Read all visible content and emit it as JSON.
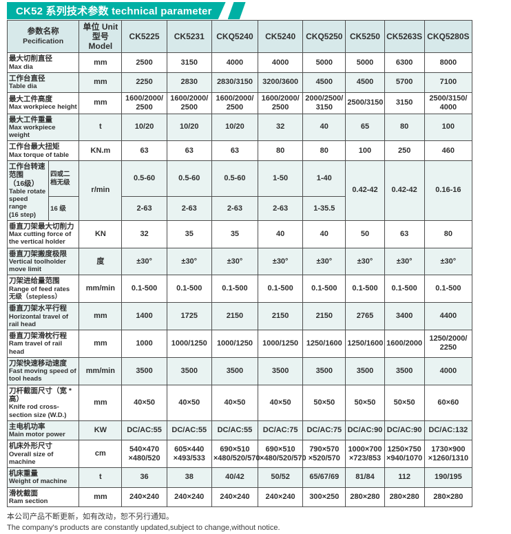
{
  "banner": {
    "title": "CK52 系列技术参数  technical parameter",
    "accent_color": "#00b0a4"
  },
  "table": {
    "header": {
      "param_zh": "参数名称",
      "param_en": "Pecification",
      "unit_line1": "单位 Unit",
      "unit_line2": "型号 Model"
    },
    "columns": [
      "CK5225",
      "CK5231",
      "CKQ5240",
      "CK5240",
      "CKQ5250",
      "CK5250",
      "CK5263S",
      "CKQ5280S"
    ],
    "rows": [
      {
        "zh": "最大切削直径",
        "en": "Max dia",
        "unit": "mm",
        "values": [
          "2500",
          "3150",
          "4000",
          "4000",
          "5000",
          "5000",
          "6300",
          "8000"
        ]
      },
      {
        "zh": "工作台直径",
        "en": "Table dia",
        "unit": "mm",
        "values": [
          "2250",
          "2830",
          "2830/3150",
          "3200/3600",
          "4500",
          "4500",
          "5700",
          "7100"
        ]
      },
      {
        "zh": "最大工件高度",
        "en": "Max workpiece height",
        "unit": "mm",
        "values": [
          "1600/2000/\n2500",
          "1600/2000/\n2500",
          "1600/2000/\n2500",
          "1600/2000/\n2500",
          "2000/2500/\n3150",
          "2500/3150",
          "3150",
          "2500/3150/\n4000"
        ]
      },
      {
        "zh": "最大工件重量",
        "en": "Max workpiece weight",
        "unit": "t",
        "values": [
          "10/20",
          "10/20",
          "10/20",
          "32",
          "40",
          "65",
          "80",
          "100"
        ]
      },
      {
        "zh": "工作台最大扭矩",
        "en": "Max torque of table",
        "unit": "KN.m",
        "values": [
          "63",
          "63",
          "63",
          "80",
          "80",
          "100",
          "250",
          "460"
        ]
      },
      {
        "split": true,
        "zh": "工作台转速范围\n（16级）",
        "en": "Table rotate\nspeed range\n(16 step)",
        "unit": "r/min",
        "sub": [
          {
            "label": "四或二\n档无级",
            "values": [
              "0.5-60",
              "0.5-60",
              "0.5-60",
              "1-50",
              "1-40"
            ]
          },
          {
            "label": "16 级",
            "values": [
              "2-63",
              "2-63",
              "2-63",
              "2-63",
              "1-35.5"
            ]
          }
        ],
        "merged": [
          "0.42-42",
          "0.42-42",
          "0.16-16"
        ]
      },
      {
        "zh": "垂直刀架最大切削力",
        "en": "Max cutting force of the vertical holder",
        "unit": "KN",
        "values": [
          "32",
          "35",
          "35",
          "40",
          "40",
          "50",
          "63",
          "80"
        ]
      },
      {
        "zh": "垂直刀架搬度极限",
        "en": "Vertical toolholder move limit",
        "unit": "度",
        "values": [
          "±30°",
          "±30°",
          "±30°",
          "±30°",
          "±30°",
          "±30°",
          "±30°",
          "±30°"
        ]
      },
      {
        "zh": "刀架进给量范围",
        "en": "Range of feed rates 无级（stepless）",
        "unit": "mm/min",
        "values": [
          "0.1-500",
          "0.1-500",
          "0.1-500",
          "0.1-500",
          "0.1-500",
          "0.1-500",
          "0.1-500",
          "0.1-500"
        ]
      },
      {
        "zh": "垂直刀架水平行程",
        "en": "Horizontal travel of rail head",
        "unit": "mm",
        "values": [
          "1400",
          "1725",
          "2150",
          "2150",
          "2150",
          "2765",
          "3400",
          "4400"
        ]
      },
      {
        "zh": "垂直刀架滑枕行程",
        "en": "Ram travel of rail head",
        "unit": "mm",
        "values": [
          "1000",
          "1000/1250",
          "1000/1250",
          "1000/1250",
          "1250/1600",
          "1250/1600",
          "1600/2000",
          "1250/2000/\n2250"
        ]
      },
      {
        "zh": "刀架快速移动速度",
        "en": "Fast moving speed of tool heads",
        "unit": "mm/min",
        "values": [
          "3500",
          "3500",
          "3500",
          "3500",
          "3500",
          "3500",
          "3500",
          "4000"
        ]
      },
      {
        "zh": "刀杆截面尺寸（宽 * 高）",
        "en": "Knife rod cross-section size (W.D.)",
        "unit": "mm",
        "values": [
          "40×50",
          "40×50",
          "40×50",
          "40×50",
          "50×50",
          "50×50",
          "50×50",
          "60×60"
        ]
      },
      {
        "zh": "主电机功率",
        "en": "Main motor power",
        "unit": "KW",
        "values": [
          "DC/AC:55",
          "DC/AC:55",
          "DC/AC:55",
          "DC/AC:75",
          "DC/AC:75",
          "DC/AC:90",
          "DC/AC:90",
          "DC/AC:132"
        ]
      },
      {
        "zh": "机床外形尺寸",
        "en": "Overall size of machine",
        "unit": "cm",
        "values": [
          "540×470\n×480/520",
          "605×440\n×493/533",
          "690×510\n×480/520/570",
          "690×510\n×480/520/570",
          "790×570\n×520/570",
          "1000×700\n×723/853",
          "1250×750\n×940/1070",
          "1730×900\n×1260/1310"
        ]
      },
      {
        "zh": "机床重量",
        "en": "Weight of machine",
        "unit": "t",
        "values": [
          "36",
          "38",
          "40/42",
          "50/52",
          "65/67/69",
          "81/84",
          "112",
          "190/195"
        ]
      },
      {
        "zh": "滑枕截面",
        "en": "Ram section",
        "unit": "mm",
        "values": [
          "240×240",
          "240×240",
          "240×240",
          "240×240",
          "300×250",
          "280×280",
          "280×280",
          "280×280"
        ]
      }
    ]
  },
  "footer": {
    "zh": "本公司产品不断更新，如有改动，恕不另行通知。",
    "en": "The company's products are constantly updated,subject to change,without notice."
  }
}
